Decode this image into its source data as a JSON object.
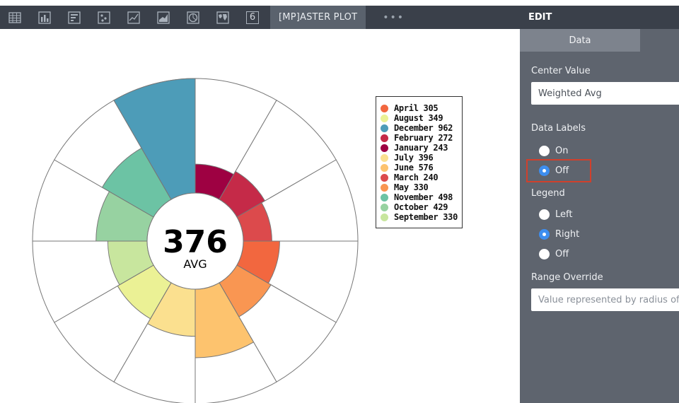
{
  "toolbar": {
    "icons": [
      "table-icon",
      "bar-chart-icon",
      "list-icon",
      "scatter-icon",
      "line-chart-icon",
      "area-chart-icon",
      "pie-chart-icon",
      "map-icon"
    ],
    "number_tab": "6",
    "active_tab": "[MP]ASTER PLOT",
    "more": "•••"
  },
  "panel": {
    "title": "EDIT",
    "tabs": [
      "Data",
      ""
    ],
    "center_value": {
      "label": "Center Value",
      "value": "Weighted Avg"
    },
    "data_labels": {
      "label": "Data Labels",
      "options": [
        "On",
        "Off"
      ],
      "selected": "Off"
    },
    "legend": {
      "label": "Legend",
      "options": [
        "Left",
        "Right",
        "Off"
      ],
      "selected": "Right"
    },
    "range_override": {
      "label": "Range Override",
      "placeholder": "Value represented by radius of"
    }
  },
  "chart": {
    "center_value": "376",
    "center_label": "AVG",
    "slices": [
      {
        "label": "January",
        "value": 243,
        "color": "#9e0142"
      },
      {
        "label": "February",
        "value": 272,
        "color": "#c52a48"
      },
      {
        "label": "March",
        "value": 240,
        "color": "#dc4a4c"
      },
      {
        "label": "April",
        "value": 305,
        "color": "#f2673f"
      },
      {
        "label": "May",
        "value": 330,
        "color": "#f99652"
      },
      {
        "label": "June",
        "value": 576,
        "color": "#fdc36e"
      },
      {
        "label": "July",
        "value": 396,
        "color": "#fbe08f"
      },
      {
        "label": "August",
        "value": 349,
        "color": "#ebf195"
      },
      {
        "label": "September",
        "value": 330,
        "color": "#c8e69e"
      },
      {
        "label": "October",
        "value": 429,
        "color": "#97d2a1"
      },
      {
        "label": "November",
        "value": 498,
        "color": "#6cc3a4"
      },
      {
        "label": "December",
        "value": 962,
        "color": "#4d9cb8"
      }
    ],
    "legend": [
      {
        "text": "April 305",
        "color": "#f2673f"
      },
      {
        "text": "August 349",
        "color": "#ebf195"
      },
      {
        "text": "December 962",
        "color": "#4d9cb8"
      },
      {
        "text": "February 272",
        "color": "#c52a48"
      },
      {
        "text": "January 243",
        "color": "#9e0142"
      },
      {
        "text": "July 396",
        "color": "#fbe08f"
      },
      {
        "text": "June 576",
        "color": "#fdc36e"
      },
      {
        "text": "March 240",
        "color": "#dc4a4c"
      },
      {
        "text": "May 330",
        "color": "#f99652"
      },
      {
        "text": "November 498",
        "color": "#6cc3a4"
      },
      {
        "text": "October 429",
        "color": "#97d2a1"
      },
      {
        "text": "September 330",
        "color": "#c8e69e"
      }
    ]
  }
}
